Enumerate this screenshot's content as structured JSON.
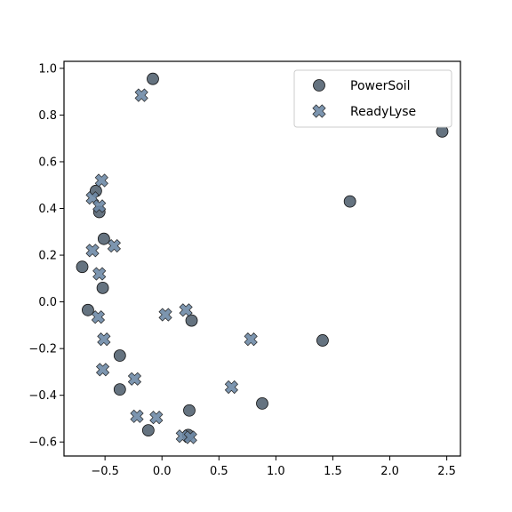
{
  "chart_data": {
    "type": "scatter",
    "title": "",
    "xlabel": "",
    "ylabel": "",
    "xlim": [
      -0.86,
      2.62
    ],
    "ylim": [
      -0.66,
      1.03
    ],
    "xticks": [
      -0.5,
      0.0,
      0.5,
      1.0,
      1.5,
      2.0,
      2.5
    ],
    "xtick_labels": [
      "−0.5",
      "0.0",
      "0.5",
      "1.0",
      "1.5",
      "2.0",
      "2.5"
    ],
    "yticks": [
      -0.6,
      -0.4,
      -0.2,
      0.0,
      0.2,
      0.4,
      0.6,
      0.8,
      1.0
    ],
    "ytick_labels": [
      "−0.6",
      "−0.4",
      "−0.2",
      "0.0",
      "0.2",
      "0.4",
      "0.6",
      "0.8",
      "1.0"
    ],
    "grid": false,
    "legend_position": "top-right",
    "series": [
      {
        "name": "PowerSoil",
        "marker": "circle",
        "color": "#4a5a6a",
        "points": [
          [
            -0.08,
            0.955
          ],
          [
            2.46,
            0.73
          ],
          [
            1.65,
            0.43
          ],
          [
            -0.58,
            0.475
          ],
          [
            -0.55,
            0.385
          ],
          [
            -0.51,
            0.27
          ],
          [
            -0.7,
            0.15
          ],
          [
            -0.52,
            0.06
          ],
          [
            -0.65,
            -0.035
          ],
          [
            0.26,
            -0.08
          ],
          [
            1.41,
            -0.165
          ],
          [
            -0.37,
            -0.23
          ],
          [
            -0.37,
            -0.375
          ],
          [
            0.88,
            -0.435
          ],
          [
            0.24,
            -0.465
          ],
          [
            -0.12,
            -0.55
          ],
          [
            0.23,
            -0.57
          ]
        ]
      },
      {
        "name": "ReadyLyse",
        "marker": "x",
        "color": "#6e8aa6",
        "points": [
          [
            -0.18,
            0.885
          ],
          [
            -0.53,
            0.52
          ],
          [
            -0.61,
            0.445
          ],
          [
            -0.55,
            0.41
          ],
          [
            -0.42,
            0.24
          ],
          [
            -0.61,
            0.22
          ],
          [
            -0.55,
            0.12
          ],
          [
            0.21,
            -0.035
          ],
          [
            0.03,
            -0.055
          ],
          [
            -0.56,
            -0.065
          ],
          [
            0.78,
            -0.16
          ],
          [
            -0.51,
            -0.16
          ],
          [
            -0.52,
            -0.29
          ],
          [
            -0.24,
            -0.33
          ],
          [
            0.61,
            -0.365
          ],
          [
            -0.22,
            -0.49
          ],
          [
            -0.05,
            -0.495
          ],
          [
            0.18,
            -0.575
          ],
          [
            0.25,
            -0.58
          ]
        ]
      }
    ]
  }
}
